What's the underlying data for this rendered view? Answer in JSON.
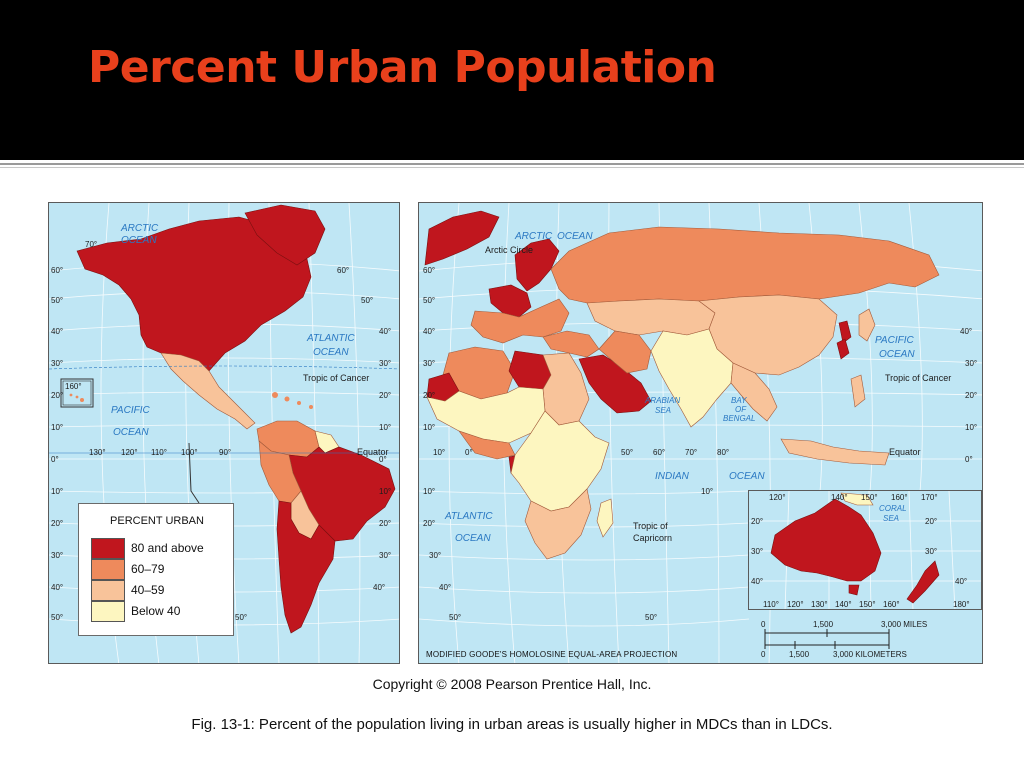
{
  "slide": {
    "title": "Percent Urban Population",
    "caption": "Fig. 13-1: Percent of the population living in urban areas is usually higher in MDCs than in LDCs.",
    "copyright": "Copyright © 2008 Pearson Prentice Hall, Inc."
  },
  "colors": {
    "background": "#ffffff",
    "title_band": "#000000",
    "title_text": "#e8401c",
    "ocean": "#bfe6f4",
    "label_blue": "#2a78c2"
  },
  "legend": {
    "title": "PERCENT URBAN",
    "classes": [
      {
        "label": "80 and above",
        "color": "#c0161e"
      },
      {
        "label": "60–79",
        "color": "#ee8a5c"
      },
      {
        "label": "40–59",
        "color": "#f8c39a"
      },
      {
        "label": "Below 40",
        "color": "#fdf6c0"
      }
    ]
  },
  "map": {
    "projection_note": "MODIFIED GOODE'S HOMOLOSINE EQUAL-AREA PROJECTION",
    "labels": {
      "arctic_ocean": [
        "ARCTIC",
        "OCEAN"
      ],
      "atlantic_ocean": [
        "ATLANTIC",
        "OCEAN"
      ],
      "pacific_ocean": [
        "PACIFIC",
        "OCEAN"
      ],
      "indian_ocean": "INDIAN",
      "ocean_word": "OCEAN",
      "arabian_sea": [
        "ARABIAN",
        "SEA"
      ],
      "bay_of_bengal": [
        "BAY",
        "OF",
        "BENGAL"
      ],
      "coral_sea": [
        "CORAL",
        "SEA"
      ],
      "tropic_of_cancer": "Tropic of Cancer",
      "tropic_of_capricorn": [
        "Tropic of",
        "Capricorn"
      ],
      "equator": "Equator",
      "arctic_circle": "Arctic Circle",
      "inset_hawaii_deg": "160°"
    },
    "latitudes": [
      "70°",
      "60°",
      "50°",
      "40°",
      "30°",
      "20°",
      "10°",
      "0°"
    ],
    "longitudes_americas": [
      "130°",
      "120°",
      "110°",
      "100°",
      "90°"
    ],
    "longitudes_afro_eurasia": [
      "10°",
      "0°",
      "50°",
      "60°",
      "70°",
      "80°"
    ],
    "longitudes_oceania": [
      "120°",
      "140°",
      "150°",
      "160°",
      "170°"
    ],
    "longitudes_inset_bottom": [
      "110°",
      "120°",
      "130°",
      "140°",
      "150°",
      "160°",
      "180°"
    ],
    "scale": {
      "miles": [
        "0",
        "1,500",
        "3,000 MILES"
      ],
      "kilometers": [
        "0",
        "1,500",
        "3,000 KILOMETERS"
      ]
    }
  }
}
